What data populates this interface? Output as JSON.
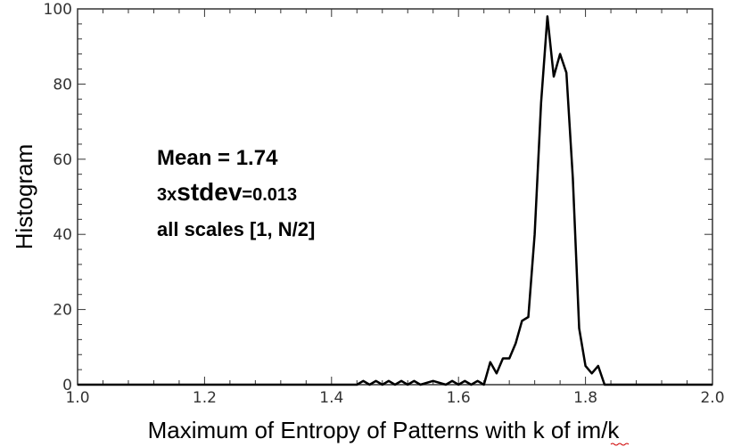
{
  "chart_data": {
    "type": "line",
    "title": "",
    "xlabel": "Maximum of Entropy of Patterns with k of im/k",
    "ylabel": "Histogram",
    "xlim": [
      1.0,
      2.0
    ],
    "ylim": [
      0,
      100
    ],
    "xticks": [
      "1.0",
      "1.2",
      "1.4",
      "1.6",
      "1.8",
      "2.0"
    ],
    "yticks": [
      "0",
      "20",
      "40",
      "60",
      "80",
      "100"
    ],
    "grid": false,
    "legend": "none",
    "series": [
      {
        "color": "#000000",
        "x": [
          1.0,
          1.44,
          1.45,
          1.46,
          1.47,
          1.48,
          1.49,
          1.5,
          1.51,
          1.52,
          1.53,
          1.54,
          1.56,
          1.58,
          1.59,
          1.6,
          1.61,
          1.62,
          1.63,
          1.64,
          1.65,
          1.66,
          1.67,
          1.68,
          1.69,
          1.7,
          1.71,
          1.72,
          1.73,
          1.74,
          1.75,
          1.76,
          1.77,
          1.78,
          1.79,
          1.8,
          1.81,
          1.82,
          1.83,
          2.0
        ],
        "y": [
          0,
          0,
          1,
          0,
          1,
          0,
          1,
          0,
          1,
          0,
          1,
          0,
          1,
          0,
          1,
          0,
          1,
          0,
          1,
          0,
          6,
          3,
          7,
          7,
          11,
          17,
          18,
          40,
          75,
          98,
          82,
          88,
          83,
          55,
          15,
          5,
          3,
          5,
          0,
          0
        ]
      }
    ],
    "annotations": {
      "mean": "Mean = 1.74",
      "stdev_prefix": "3x",
      "stdev_word": "stdev",
      "stdev_value": "=0.013",
      "scales": "all scales [1, N/2]"
    }
  }
}
